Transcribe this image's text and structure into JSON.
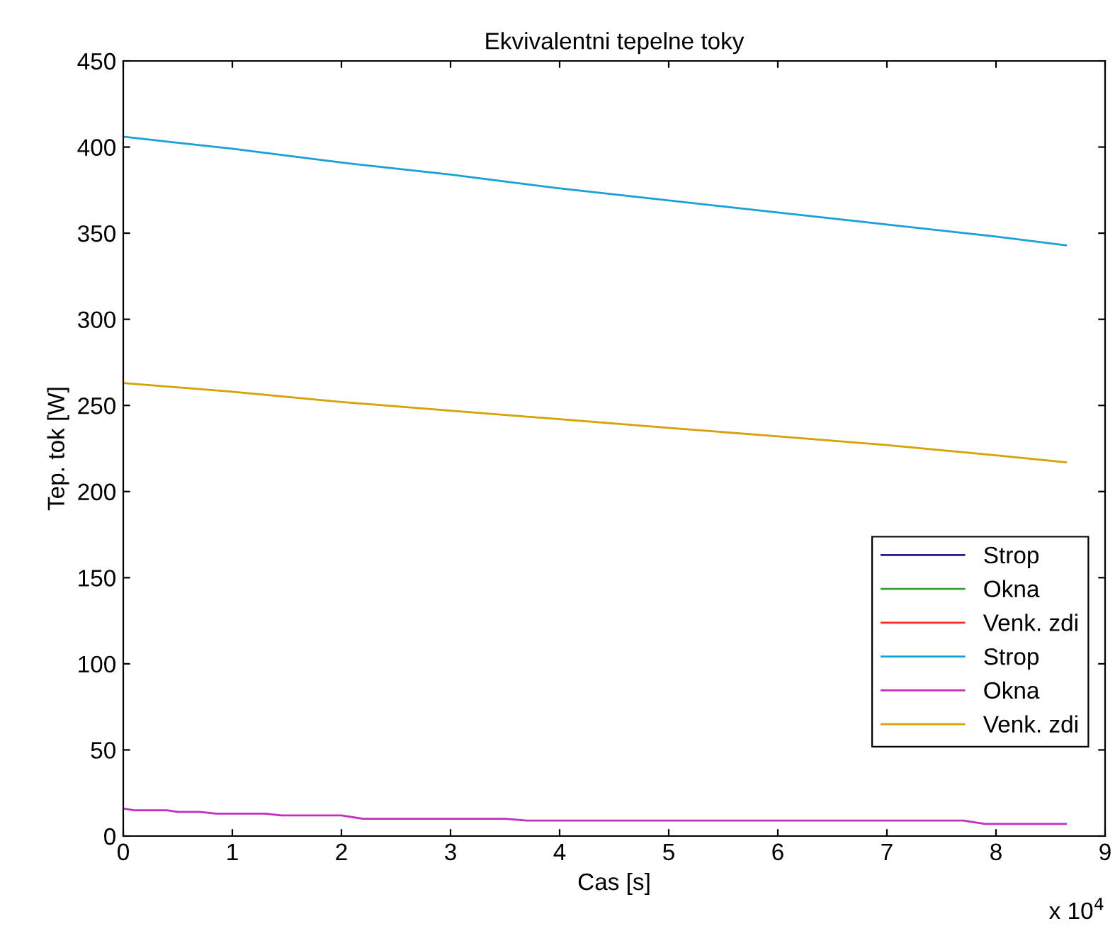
{
  "chart_data": {
    "type": "line",
    "title": "Ekvivalentni tepelne toky",
    "xlabel": "Cas [s]",
    "ylabel": "Tep. tok [W]",
    "annotations": [
      "x 10$^{4}$"
    ],
    "xlim": [
      0,
      9
    ],
    "ylim": [
      0,
      450
    ],
    "xticks": [
      0,
      1,
      2,
      3,
      4,
      5,
      6,
      7,
      8,
      9
    ],
    "yticks": [
      0,
      50,
      100,
      150,
      200,
      250,
      300,
      350,
      400,
      450
    ],
    "grid": false,
    "legend": "bottom right",
    "series": [
      {
        "name": "Strop",
        "color": "#2a1a8a"
      },
      {
        "name": "Okna",
        "color": "#2ca02c"
      },
      {
        "name": "Venk. zdi",
        "color": "#ff2a1a"
      },
      {
        "name": "Strop",
        "color": "#1aa0d8",
        "x": [
          0,
          1,
          2,
          3,
          4,
          5,
          6,
          7,
          8,
          8.64
        ],
        "values": [
          406,
          399,
          391,
          384,
          376,
          369,
          362,
          355,
          348,
          343
        ]
      },
      {
        "name": "Okna",
        "color": "#c030c0",
        "x": [
          0,
          0.1,
          0.4,
          0.5,
          0.7,
          0.85,
          1.3,
          1.45,
          2.0,
          2.2,
          3.5,
          3.7,
          7.7,
          7.9,
          8.64
        ],
        "values": [
          16,
          15,
          15,
          14,
          14,
          13,
          13,
          12,
          12,
          10,
          10,
          9,
          9,
          7,
          7
        ]
      },
      {
        "name": "Venk. zdi",
        "color": "#d8a000",
        "x": [
          0,
          1,
          2,
          3,
          4,
          5,
          6,
          7,
          8,
          8.64
        ],
        "values": [
          263,
          258,
          252,
          247,
          242,
          237,
          232,
          227,
          221,
          217
        ]
      }
    ]
  }
}
